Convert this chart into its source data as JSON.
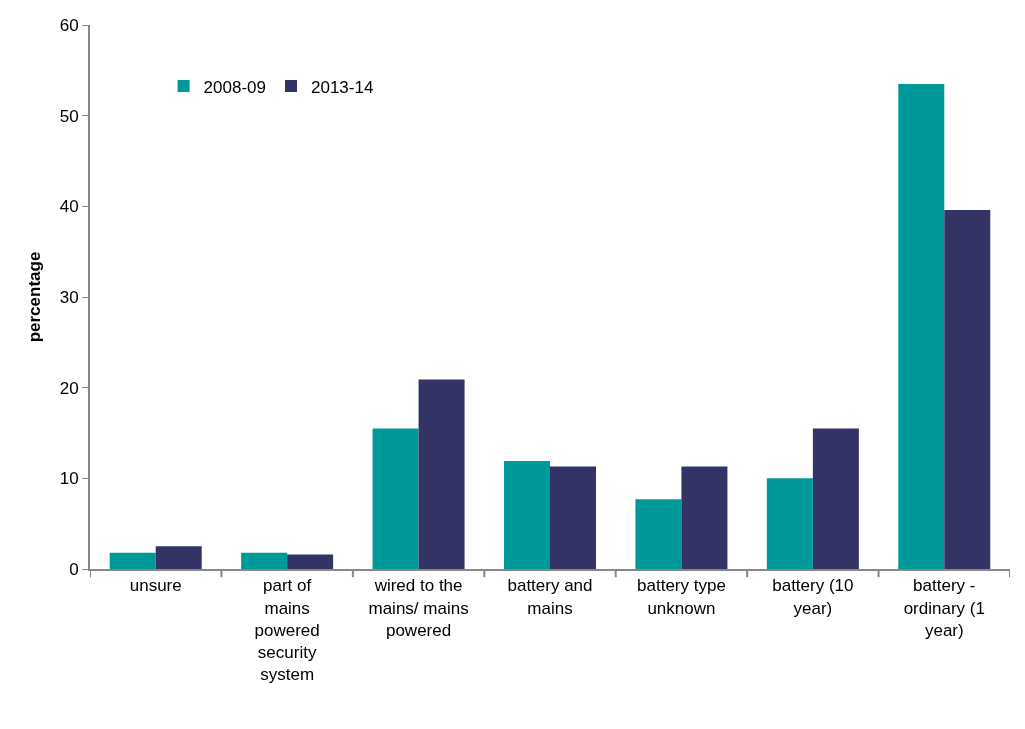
{
  "chart_data": {
    "type": "bar",
    "ylabel": "percentage",
    "categories": [
      "unsure",
      "part of mains powered security system",
      "wired to the mains/ mains powered",
      "battery and mains",
      "battery type unknown",
      "battery (10 year)",
      "battery - ordinary (1 year)"
    ],
    "series": [
      {
        "name": "2008-09",
        "color": "#009999",
        "values": [
          1.8,
          1.8,
          15.5,
          11.9,
          7.7,
          10.0,
          53.5
        ]
      },
      {
        "name": "2013-14",
        "color": "#333366",
        "values": [
          2.5,
          1.6,
          20.9,
          11.3,
          11.3,
          15.5,
          39.6
        ]
      }
    ],
    "ylim": [
      0,
      60
    ],
    "yticks": [
      0,
      10,
      20,
      30,
      40,
      50,
      60
    ],
    "legend": "top left"
  }
}
